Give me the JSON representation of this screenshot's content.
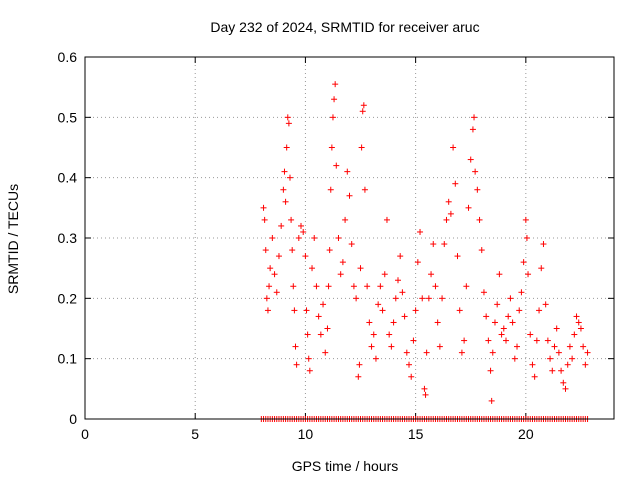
{
  "chart_data": {
    "type": "scatter",
    "title": "Day 232 of 2024, SRMTID for receiver aruc",
    "xlabel": "GPS time / hours",
    "ylabel": "SRMTID / TECUs",
    "xlim": [
      0,
      24
    ],
    "ylim": [
      0,
      0.6
    ],
    "x_ticks": [
      0,
      5,
      10,
      15,
      20
    ],
    "y_ticks": [
      0,
      0.1,
      0.2,
      0.3,
      0.4,
      0.5,
      0.6
    ],
    "x_tick_labels": [
      "0",
      "5",
      "10",
      "15",
      "20"
    ],
    "y_tick_labels": [
      "0",
      "0.1",
      "0.2",
      "0.3",
      "0.4",
      "0.5",
      "0.6"
    ],
    "grid": true,
    "marker": "+",
    "series": [
      {
        "name": "SRMTID",
        "color": "#ff0000",
        "points": [
          [
            8.1,
            0.35
          ],
          [
            8.15,
            0.33
          ],
          [
            8.2,
            0.28
          ],
          [
            8.25,
            0.2
          ],
          [
            8.3,
            0.18
          ],
          [
            8.35,
            0.22
          ],
          [
            8.4,
            0.25
          ],
          [
            8.5,
            0.3
          ],
          [
            8.6,
            0.24
          ],
          [
            8.7,
            0.21
          ],
          [
            8.8,
            0.27
          ],
          [
            8.9,
            0.32
          ],
          [
            9.0,
            0.38
          ],
          [
            9.05,
            0.41
          ],
          [
            9.1,
            0.36
          ],
          [
            9.15,
            0.45
          ],
          [
            9.2,
            0.5
          ],
          [
            9.25,
            0.49
          ],
          [
            9.3,
            0.4
          ],
          [
            9.35,
            0.33
          ],
          [
            9.4,
            0.28
          ],
          [
            9.45,
            0.22
          ],
          [
            9.5,
            0.18
          ],
          [
            9.55,
            0.12
          ],
          [
            9.6,
            0.09
          ],
          [
            9.7,
            0.3
          ],
          [
            9.8,
            0.32
          ],
          [
            9.9,
            0.31
          ],
          [
            10.0,
            0.27
          ],
          [
            10.05,
            0.18
          ],
          [
            10.1,
            0.14
          ],
          [
            10.15,
            0.1
          ],
          [
            10.2,
            0.08
          ],
          [
            10.3,
            0.25
          ],
          [
            10.4,
            0.3
          ],
          [
            10.5,
            0.22
          ],
          [
            10.6,
            0.17
          ],
          [
            10.7,
            0.14
          ],
          [
            10.8,
            0.19
          ],
          [
            10.9,
            0.11
          ],
          [
            11.0,
            0.15
          ],
          [
            11.05,
            0.22
          ],
          [
            11.1,
            0.28
          ],
          [
            11.15,
            0.38
          ],
          [
            11.2,
            0.45
          ],
          [
            11.25,
            0.5
          ],
          [
            11.3,
            0.53
          ],
          [
            11.35,
            0.555
          ],
          [
            11.4,
            0.42
          ],
          [
            11.5,
            0.3
          ],
          [
            11.6,
            0.24
          ],
          [
            11.7,
            0.26
          ],
          [
            11.8,
            0.33
          ],
          [
            11.9,
            0.41
          ],
          [
            12.0,
            0.37
          ],
          [
            12.1,
            0.29
          ],
          [
            12.2,
            0.22
          ],
          [
            12.3,
            0.2
          ],
          [
            12.4,
            0.07
          ],
          [
            12.45,
            0.09
          ],
          [
            12.5,
            0.25
          ],
          [
            12.55,
            0.45
          ],
          [
            12.6,
            0.51
          ],
          [
            12.65,
            0.52
          ],
          [
            12.7,
            0.38
          ],
          [
            12.8,
            0.22
          ],
          [
            12.9,
            0.16
          ],
          [
            13.0,
            0.12
          ],
          [
            13.1,
            0.14
          ],
          [
            13.2,
            0.1
          ],
          [
            13.3,
            0.19
          ],
          [
            13.4,
            0.22
          ],
          [
            13.5,
            0.18
          ],
          [
            13.6,
            0.24
          ],
          [
            13.7,
            0.33
          ],
          [
            13.8,
            0.14
          ],
          [
            13.9,
            0.12
          ],
          [
            14.0,
            0.16
          ],
          [
            14.1,
            0.2
          ],
          [
            14.2,
            0.23
          ],
          [
            14.3,
            0.27
          ],
          [
            14.4,
            0.21
          ],
          [
            14.5,
            0.17
          ],
          [
            14.6,
            0.11
          ],
          [
            14.7,
            0.09
          ],
          [
            14.8,
            0.07
          ],
          [
            14.9,
            0.13
          ],
          [
            15.0,
            0.18
          ],
          [
            15.1,
            0.26
          ],
          [
            15.2,
            0.31
          ],
          [
            15.3,
            0.2
          ],
          [
            15.4,
            0.05
          ],
          [
            15.45,
            0.04
          ],
          [
            15.5,
            0.11
          ],
          [
            15.6,
            0.2
          ],
          [
            15.7,
            0.24
          ],
          [
            15.8,
            0.29
          ],
          [
            15.9,
            0.22
          ],
          [
            16.0,
            0.16
          ],
          [
            16.1,
            0.12
          ],
          [
            16.2,
            0.2
          ],
          [
            16.3,
            0.29
          ],
          [
            16.4,
            0.33
          ],
          [
            16.5,
            0.36
          ],
          [
            16.6,
            0.34
          ],
          [
            16.7,
            0.45
          ],
          [
            16.8,
            0.39
          ],
          [
            16.9,
            0.27
          ],
          [
            17.0,
            0.18
          ],
          [
            17.1,
            0.11
          ],
          [
            17.2,
            0.13
          ],
          [
            17.3,
            0.22
          ],
          [
            17.4,
            0.35
          ],
          [
            17.5,
            0.43
          ],
          [
            17.6,
            0.48
          ],
          [
            17.65,
            0.5
          ],
          [
            17.7,
            0.41
          ],
          [
            17.8,
            0.38
          ],
          [
            17.9,
            0.33
          ],
          [
            18.0,
            0.28
          ],
          [
            18.1,
            0.21
          ],
          [
            18.2,
            0.17
          ],
          [
            18.3,
            0.13
          ],
          [
            18.4,
            0.08
          ],
          [
            18.45,
            0.03
          ],
          [
            18.5,
            0.11
          ],
          [
            18.6,
            0.16
          ],
          [
            18.7,
            0.19
          ],
          [
            18.8,
            0.24
          ],
          [
            18.9,
            0.14
          ],
          [
            19.0,
            0.15
          ],
          [
            19.1,
            0.13
          ],
          [
            19.2,
            0.17
          ],
          [
            19.3,
            0.2
          ],
          [
            19.4,
            0.16
          ],
          [
            19.5,
            0.1
          ],
          [
            19.6,
            0.12
          ],
          [
            19.7,
            0.18
          ],
          [
            19.8,
            0.21
          ],
          [
            19.9,
            0.26
          ],
          [
            20.0,
            0.33
          ],
          [
            20.05,
            0.3
          ],
          [
            20.1,
            0.24
          ],
          [
            20.2,
            0.14
          ],
          [
            20.3,
            0.09
          ],
          [
            20.4,
            0.07
          ],
          [
            20.5,
            0.13
          ],
          [
            20.6,
            0.18
          ],
          [
            20.7,
            0.25
          ],
          [
            20.8,
            0.29
          ],
          [
            20.9,
            0.19
          ],
          [
            21.0,
            0.13
          ],
          [
            21.1,
            0.1
          ],
          [
            21.2,
            0.08
          ],
          [
            21.3,
            0.12
          ],
          [
            21.4,
            0.15
          ],
          [
            21.5,
            0.11
          ],
          [
            21.6,
            0.08
          ],
          [
            21.7,
            0.06
          ],
          [
            21.8,
            0.05
          ],
          [
            21.9,
            0.09
          ],
          [
            22.0,
            0.12
          ],
          [
            22.1,
            0.1
          ],
          [
            22.2,
            0.14
          ],
          [
            22.3,
            0.17
          ],
          [
            22.4,
            0.16
          ],
          [
            22.5,
            0.15
          ],
          [
            22.6,
            0.12
          ],
          [
            22.7,
            0.09
          ],
          [
            22.8,
            0.11
          ]
        ],
        "zero_points_x": [
          8.0,
          8.1,
          8.2,
          8.3,
          8.4,
          8.5,
          8.6,
          8.7,
          8.8,
          8.9,
          9.0,
          9.1,
          9.2,
          9.3,
          9.4,
          9.5,
          9.6,
          9.7,
          9.8,
          9.9,
          10.0,
          10.1,
          10.2,
          10.3,
          10.4,
          10.5,
          10.6,
          10.7,
          10.8,
          10.9,
          11.0,
          11.1,
          11.2,
          11.3,
          11.4,
          11.5,
          11.6,
          11.7,
          11.8,
          11.9,
          12.0,
          12.1,
          12.2,
          12.3,
          12.4,
          12.5,
          12.6,
          12.7,
          12.8,
          12.9,
          13.0,
          13.1,
          13.2,
          13.3,
          13.4,
          13.5,
          13.6,
          13.7,
          13.8,
          13.9,
          14.0,
          14.1,
          14.2,
          14.3,
          14.4,
          14.5,
          14.6,
          14.7,
          14.8,
          14.9,
          15.0,
          15.1,
          15.2,
          15.3,
          15.4,
          15.5,
          15.6,
          15.7,
          15.8,
          15.9,
          16.0,
          16.1,
          16.2,
          16.3,
          16.4,
          16.5,
          16.6,
          16.7,
          16.8,
          16.9,
          17.0,
          17.1,
          17.2,
          17.3,
          17.4,
          17.5,
          17.6,
          17.7,
          17.8,
          17.9,
          18.0,
          18.1,
          18.2,
          18.3,
          18.4,
          18.5,
          18.6,
          18.7,
          18.8,
          18.9,
          19.0,
          19.1,
          19.2,
          19.3,
          19.4,
          19.5,
          19.6,
          19.7,
          19.8,
          19.9,
          20.0,
          20.1,
          20.2,
          20.3,
          20.4,
          20.5,
          20.6,
          20.7,
          20.8,
          20.9,
          21.0,
          21.1,
          21.2,
          21.3,
          21.4,
          21.5,
          21.6,
          21.7,
          21.8,
          21.9,
          22.0,
          22.1,
          22.2,
          22.3,
          22.4,
          22.5,
          22.6,
          22.7,
          22.8
        ]
      }
    ]
  }
}
